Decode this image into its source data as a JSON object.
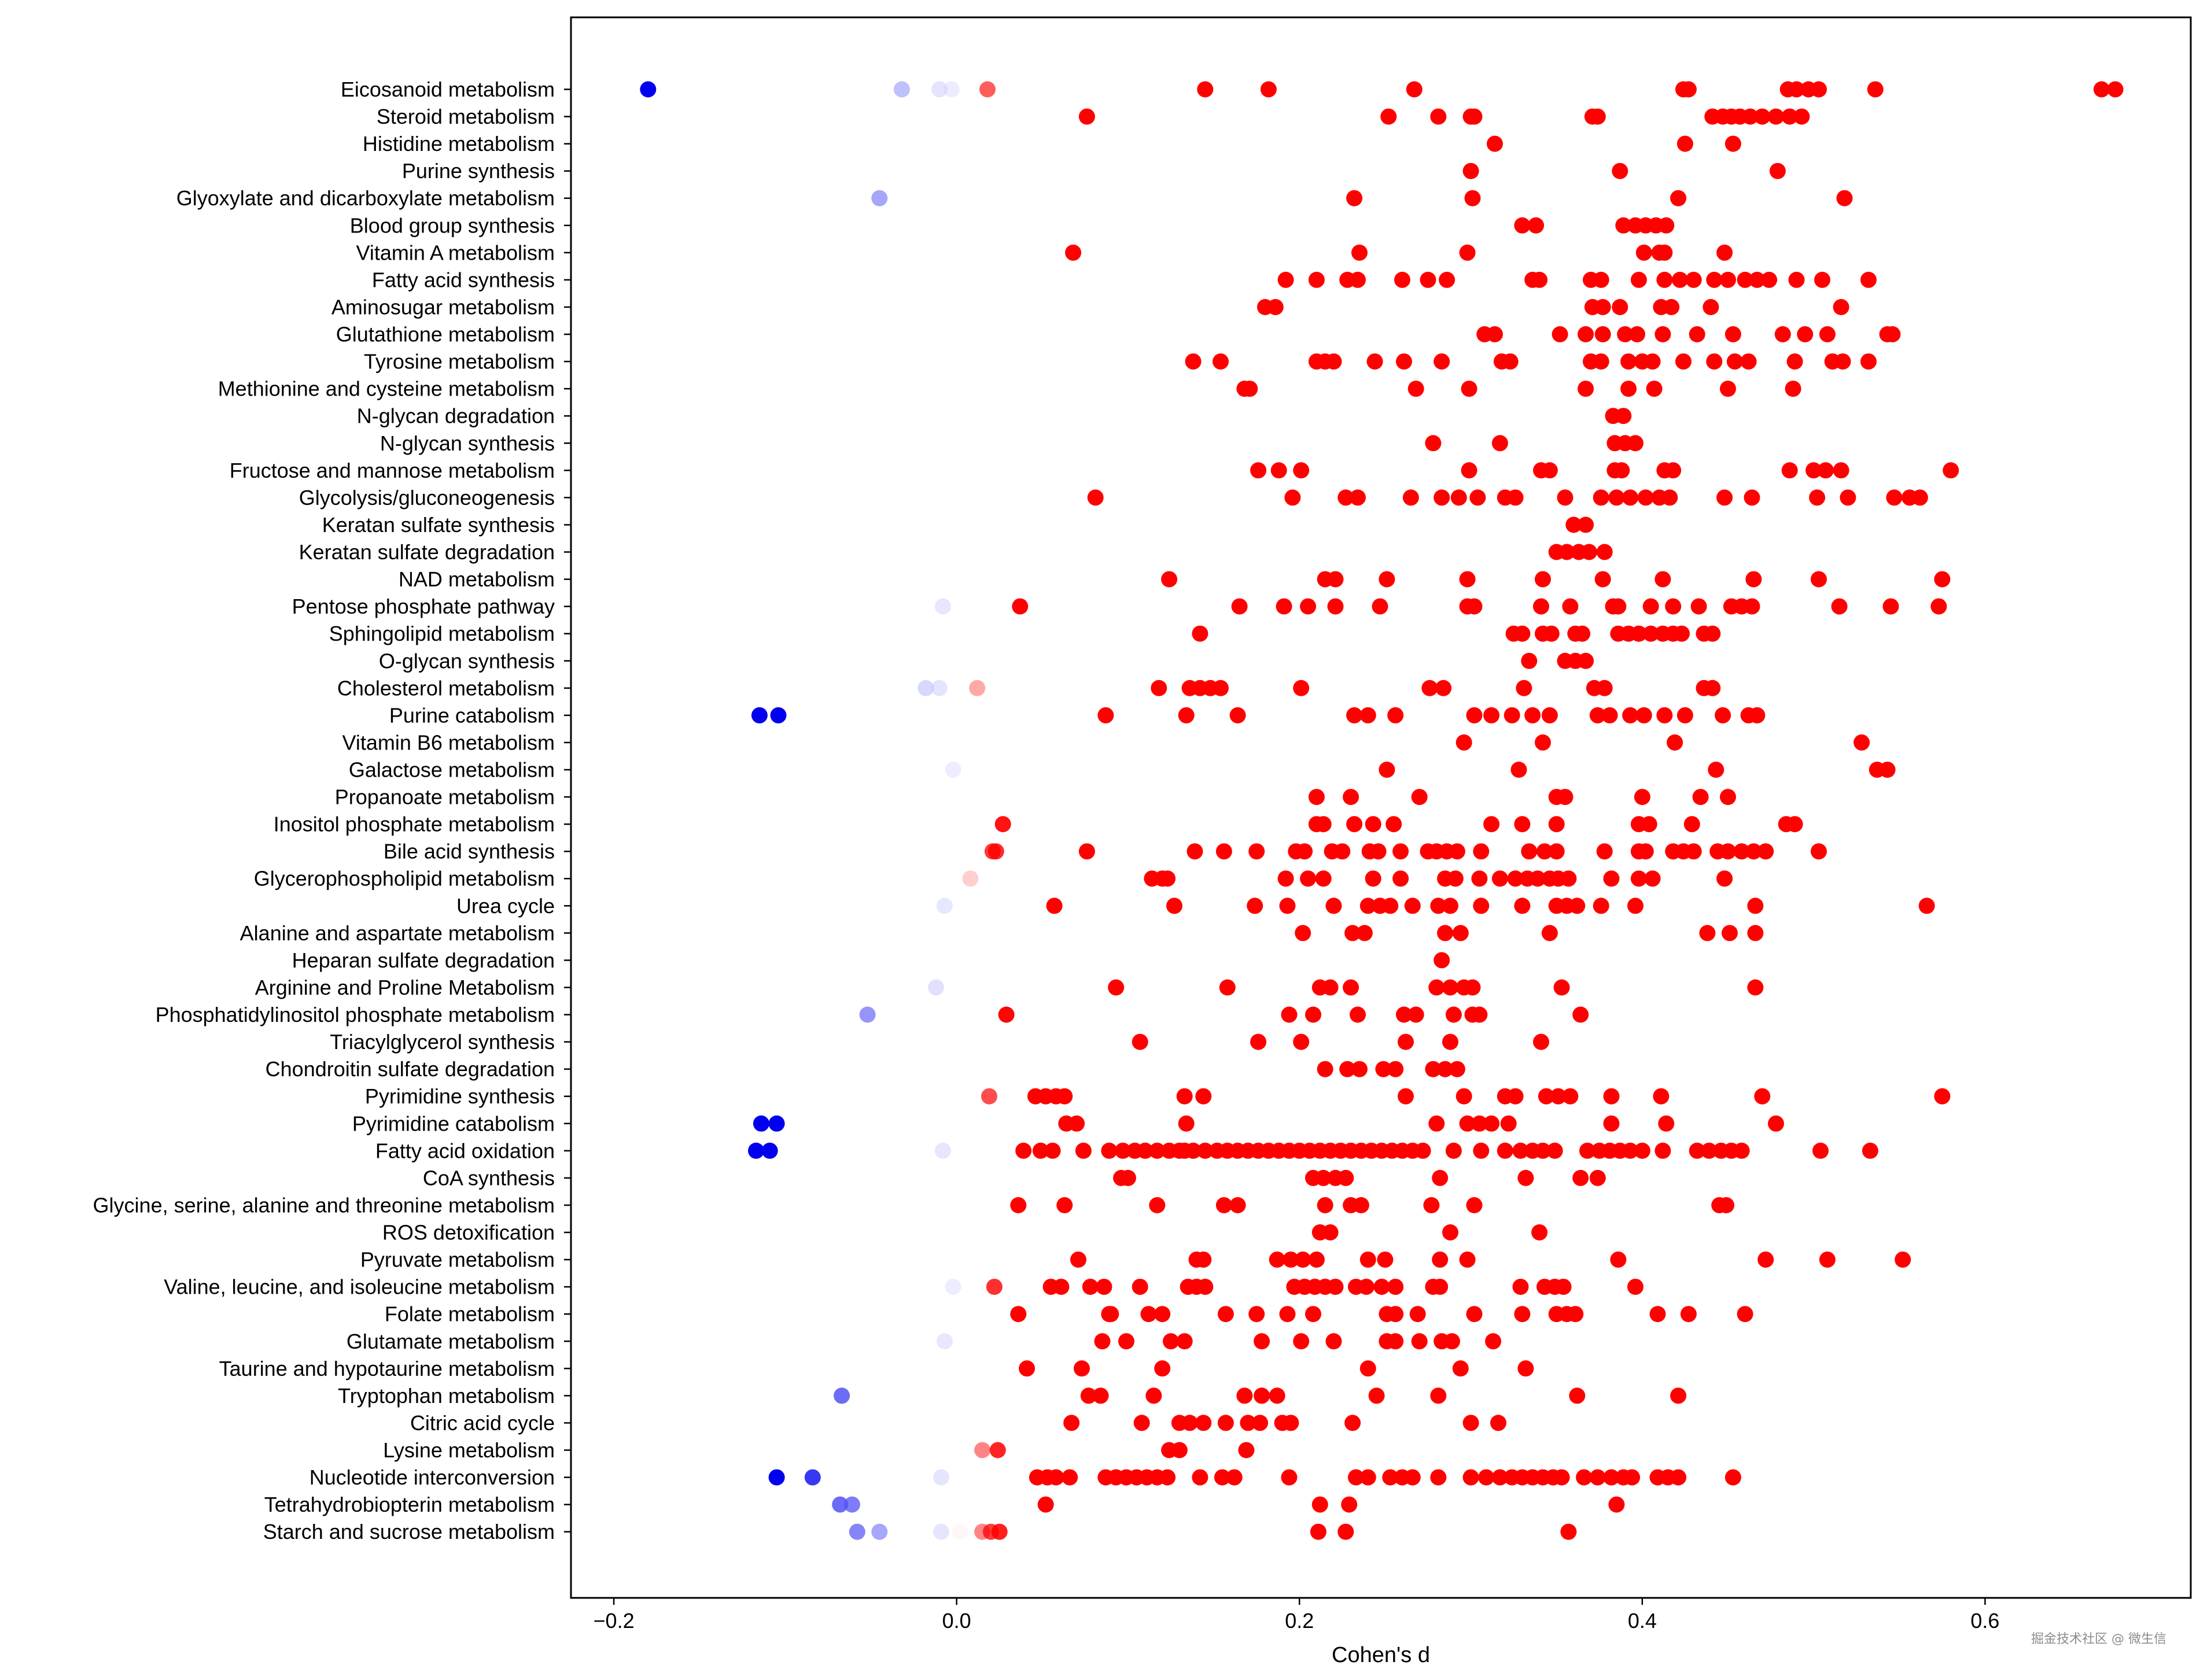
{
  "watermark": "掘金技术社区 @ 微生信",
  "chart_data": {
    "type": "scatter",
    "title": "",
    "xlabel": "Cohen's d",
    "ylabel": "",
    "xlim": [
      -0.225,
      0.72
    ],
    "xticks": [
      -0.2,
      0.0,
      0.2,
      0.4,
      0.6
    ],
    "xtick_labels": [
      "−0.2",
      "0.0",
      "0.2",
      "0.4",
      "0.6"
    ],
    "grid": false,
    "color_encoding": "diverging blue-white-red by Cohen's d (strong blue negative, faint near zero, strong red positive)",
    "colors": {
      "negative": "#0000ee",
      "positive": "#ff0000"
    },
    "categories": [
      "Eicosanoid metabolism",
      "Steroid metabolism",
      "Histidine metabolism",
      "Purine synthesis",
      "Glyoxylate and dicarboxylate metabolism",
      "Blood group synthesis",
      "Vitamin A metabolism",
      "Fatty acid synthesis",
      "Aminosugar metabolism",
      "Glutathione metabolism",
      "Tyrosine metabolism",
      "Methionine and cysteine metabolism",
      "N-glycan degradation",
      "N-glycan synthesis",
      "Fructose and mannose metabolism",
      "Glycolysis/gluconeogenesis",
      "Keratan sulfate synthesis",
      "Keratan sulfate degradation",
      "NAD metabolism",
      "Pentose phosphate pathway",
      "Sphingolipid metabolism",
      "O-glycan synthesis",
      "Cholesterol metabolism",
      "Purine catabolism",
      "Vitamin B6 metabolism",
      "Galactose metabolism",
      "Propanoate metabolism",
      "Inositol phosphate metabolism",
      "Bile acid synthesis",
      "Glycerophospholipid metabolism",
      "Urea cycle",
      "Alanine and aspartate metabolism",
      "Heparan sulfate degradation",
      "Arginine and Proline Metabolism",
      "Phosphatidylinositol phosphate metabolism",
      "Triacylglycerol synthesis",
      "Chondroitin sulfate degradation",
      "Pyrimidine synthesis",
      "Pyrimidine catabolism",
      "Fatty acid oxidation",
      "CoA synthesis",
      "Glycine, serine, alanine and threonine metabolism",
      "ROS detoxification",
      "Pyruvate metabolism",
      "Valine, leucine, and isoleucine metabolism",
      "Folate metabolism",
      "Glutamate metabolism",
      "Taurine and hypotaurine metabolism",
      "Tryptophan metabolism",
      "Citric acid cycle",
      "Lysine metabolism",
      "Nucleotide interconversion",
      "Tetrahydrobiopterin metabolism",
      "Starch and sucrose metabolism"
    ],
    "values": [
      [
        -0.18,
        -0.032,
        -0.01,
        -0.003,
        0.018,
        0.145,
        0.182,
        0.267,
        0.424,
        0.427,
        0.485,
        0.49,
        0.497,
        0.503,
        0.536,
        0.668,
        0.676
      ],
      [
        0.076,
        0.252,
        0.281,
        0.3,
        0.302,
        0.371,
        0.374,
        0.441,
        0.447,
        0.452,
        0.457,
        0.463,
        0.47,
        0.478,
        0.486,
        0.493
      ],
      [
        0.314,
        0.425,
        0.453
      ],
      [
        0.3,
        0.387,
        0.479
      ],
      [
        -0.045,
        0.232,
        0.301,
        0.421,
        0.518
      ],
      [
        0.33,
        0.338,
        0.389,
        0.396,
        0.402,
        0.408,
        0.414
      ],
      [
        0.068,
        0.235,
        0.298,
        0.401,
        0.41,
        0.413,
        0.448
      ],
      [
        0.192,
        0.21,
        0.228,
        0.234,
        0.26,
        0.275,
        0.286,
        0.336,
        0.34,
        0.37,
        0.376,
        0.398,
        0.413,
        0.422,
        0.43,
        0.442,
        0.45,
        0.46,
        0.467,
        0.474,
        0.49,
        0.505,
        0.532
      ],
      [
        0.18,
        0.186,
        0.371,
        0.377,
        0.387,
        0.411,
        0.417,
        0.44,
        0.516
      ],
      [
        0.308,
        0.314,
        0.352,
        0.367,
        0.377,
        0.39,
        0.397,
        0.412,
        0.432,
        0.453,
        0.482,
        0.495,
        0.508,
        0.543,
        0.546
      ],
      [
        0.138,
        0.154,
        0.21,
        0.215,
        0.22,
        0.244,
        0.261,
        0.283,
        0.318,
        0.323,
        0.37,
        0.376,
        0.392,
        0.4,
        0.406,
        0.424,
        0.442,
        0.454,
        0.462,
        0.489,
        0.511,
        0.517,
        0.532
      ],
      [
        0.168,
        0.171,
        0.268,
        0.299,
        0.367,
        0.392,
        0.407,
        0.45,
        0.488
      ],
      [
        0.383,
        0.389
      ],
      [
        0.278,
        0.317,
        0.384,
        0.39,
        0.396
      ],
      [
        0.176,
        0.188,
        0.201,
        0.299,
        0.341,
        0.346,
        0.384,
        0.388,
        0.413,
        0.418,
        0.486,
        0.5,
        0.507,
        0.516,
        0.58
      ],
      [
        0.081,
        0.196,
        0.227,
        0.234,
        0.265,
        0.283,
        0.293,
        0.304,
        0.32,
        0.326,
        0.355,
        0.376,
        0.385,
        0.393,
        0.402,
        0.41,
        0.416,
        0.448,
        0.464,
        0.502,
        0.52,
        0.547,
        0.556,
        0.562
      ],
      [
        0.36,
        0.367
      ],
      [
        0.35,
        0.356,
        0.363,
        0.369,
        0.378
      ],
      [
        0.124,
        0.215,
        0.221,
        0.251,
        0.298,
        0.342,
        0.377,
        0.412,
        0.465,
        0.503,
        0.575
      ],
      [
        -0.008,
        0.037,
        0.165,
        0.191,
        0.205,
        0.221,
        0.247,
        0.298,
        0.302,
        0.341,
        0.358,
        0.383,
        0.386,
        0.405,
        0.418,
        0.433,
        0.452,
        0.458,
        0.464,
        0.515,
        0.545,
        0.573
      ],
      [
        0.142,
        0.325,
        0.33,
        0.342,
        0.347,
        0.361,
        0.365,
        0.386,
        0.392,
        0.398,
        0.405,
        0.412,
        0.418,
        0.423,
        0.436,
        0.441
      ],
      [
        0.334,
        0.355,
        0.361,
        0.367
      ],
      [
        -0.018,
        -0.01,
        0.012,
        0.118,
        0.136,
        0.142,
        0.148,
        0.154,
        0.201,
        0.276,
        0.284,
        0.331,
        0.372,
        0.378,
        0.436,
        0.441
      ],
      [
        -0.115,
        -0.104,
        0.0,
        0.087,
        0.134,
        0.164,
        0.232,
        0.24,
        0.256,
        0.302,
        0.312,
        0.324,
        0.336,
        0.346,
        0.374,
        0.381,
        0.393,
        0.401,
        0.413,
        0.425,
        0.447,
        0.462,
        0.467
      ],
      [
        0.296,
        0.342,
        0.419,
        0.528
      ],
      [
        -0.002,
        0.251,
        0.328,
        0.443,
        0.537,
        0.543
      ],
      [
        0.21,
        0.23,
        0.27,
        0.35,
        0.355,
        0.4,
        0.434,
        0.45
      ],
      [
        0.027,
        0.21,
        0.214,
        0.232,
        0.243,
        0.255,
        0.312,
        0.33,
        0.35,
        0.398,
        0.404,
        0.429,
        0.484,
        0.489
      ],
      [
        0.021,
        0.023,
        0.076,
        0.139,
        0.156,
        0.175,
        0.198,
        0.203,
        0.219,
        0.225,
        0.241,
        0.246,
        0.259,
        0.275,
        0.28,
        0.286,
        0.292,
        0.306,
        0.334,
        0.343,
        0.35,
        0.378,
        0.398,
        0.402,
        0.418,
        0.424,
        0.43,
        0.444,
        0.45,
        0.458,
        0.465,
        0.472,
        0.503
      ],
      [
        0.008,
        0.114,
        0.12,
        0.123,
        0.192,
        0.205,
        0.214,
        0.243,
        0.259,
        0.285,
        0.291,
        0.305,
        0.317,
        0.326,
        0.333,
        0.339,
        0.346,
        0.351,
        0.357,
        0.382,
        0.398,
        0.406,
        0.448
      ],
      [
        -0.007,
        0.057,
        0.127,
        0.174,
        0.193,
        0.22,
        0.24,
        0.247,
        0.253,
        0.266,
        0.281,
        0.288,
        0.306,
        0.33,
        0.35,
        0.356,
        0.362,
        0.376,
        0.396,
        0.466,
        0.566
      ],
      [
        0.202,
        0.231,
        0.238,
        0.285,
        0.294,
        0.346,
        0.438,
        0.451,
        0.466
      ],
      [
        0.283
      ],
      [
        -0.012,
        0.093,
        0.158,
        0.212,
        0.218,
        0.23,
        0.28,
        0.288,
        0.296,
        0.301,
        0.353,
        0.466
      ],
      [
        -0.052,
        0.029,
        0.194,
        0.208,
        0.234,
        0.261,
        0.268,
        0.29,
        0.301,
        0.305,
        0.364
      ],
      [
        0.107,
        0.176,
        0.201,
        0.262,
        0.288,
        0.341
      ],
      [
        0.215,
        0.228,
        0.235,
        0.249,
        0.256,
        0.278,
        0.285,
        0.292
      ],
      [
        0.019,
        0.046,
        0.052,
        0.058,
        0.063,
        0.133,
        0.144,
        0.262,
        0.296,
        0.32,
        0.326,
        0.344,
        0.351,
        0.358,
        0.382,
        0.411,
        0.47,
        0.575
      ],
      [
        -0.114,
        -0.105,
        0.064,
        0.07,
        0.134,
        0.28,
        0.298,
        0.305,
        0.312,
        0.322,
        0.382,
        0.414,
        0.478
      ],
      [
        -0.117,
        -0.109,
        -0.008,
        0.039,
        0.049,
        0.056,
        0.074,
        0.089,
        0.097,
        0.104,
        0.11,
        0.117,
        0.124,
        0.13,
        0.133,
        0.138,
        0.145,
        0.152,
        0.158,
        0.164,
        0.17,
        0.176,
        0.182,
        0.188,
        0.194,
        0.2,
        0.206,
        0.212,
        0.218,
        0.224,
        0.23,
        0.236,
        0.242,
        0.248,
        0.254,
        0.26,
        0.266,
        0.272,
        0.29,
        0.306,
        0.32,
        0.329,
        0.336,
        0.342,
        0.349,
        0.368,
        0.375,
        0.381,
        0.387,
        0.393,
        0.4,
        0.412,
        0.432,
        0.439,
        0.446,
        0.452,
        0.458,
        0.504,
        0.533
      ],
      [
        0.096,
        0.1,
        0.208,
        0.214,
        0.221,
        0.227,
        0.282,
        0.332,
        0.364,
        0.374
      ],
      [
        0.036,
        0.063,
        0.117,
        0.156,
        0.164,
        0.215,
        0.23,
        0.236,
        0.277,
        0.302,
        0.445,
        0.449
      ],
      [
        0.212,
        0.218,
        0.288,
        0.34
      ],
      [
        0.071,
        0.14,
        0.144,
        0.187,
        0.195,
        0.202,
        0.21,
        0.24,
        0.25,
        0.282,
        0.298,
        0.386,
        0.472,
        0.508,
        0.552
      ],
      [
        -0.002,
        0.022,
        0.055,
        0.061,
        0.078,
        0.086,
        0.107,
        0.135,
        0.14,
        0.145,
        0.197,
        0.203,
        0.209,
        0.215,
        0.221,
        0.233,
        0.239,
        0.248,
        0.256,
        0.278,
        0.282,
        0.329,
        0.343,
        0.349,
        0.354,
        0.396
      ],
      [
        0.036,
        0.089,
        0.09,
        0.112,
        0.12,
        0.157,
        0.175,
        0.193,
        0.208,
        0.251,
        0.256,
        0.269,
        0.302,
        0.33,
        0.35,
        0.356,
        0.361,
        0.409,
        0.427,
        0.46
      ],
      [
        -0.007,
        0.085,
        0.099,
        0.125,
        0.133,
        0.178,
        0.201,
        0.22,
        0.251,
        0.256,
        0.27,
        0.283,
        0.289,
        0.313
      ],
      [
        0.041,
        0.073,
        0.12,
        0.24,
        0.294,
        0.332
      ],
      [
        -0.067,
        0.077,
        0.084,
        0.115,
        0.168,
        0.178,
        0.187,
        0.245,
        0.281,
        0.362,
        0.421
      ],
      [
        0.067,
        0.108,
        0.13,
        0.136,
        0.144,
        0.157,
        0.17,
        0.177,
        0.19,
        0.195,
        0.231,
        0.3,
        0.316
      ],
      [
        0.015,
        0.024,
        0.124,
        0.13,
        0.169
      ],
      [
        -0.105,
        -0.084,
        -0.009,
        0.047,
        0.053,
        0.058,
        0.066,
        0.087,
        0.093,
        0.099,
        0.105,
        0.111,
        0.117,
        0.123,
        0.142,
        0.155,
        0.162,
        0.194,
        0.233,
        0.24,
        0.253,
        0.26,
        0.266,
        0.281,
        0.3,
        0.309,
        0.317,
        0.324,
        0.33,
        0.336,
        0.342,
        0.348,
        0.353,
        0.366,
        0.374,
        0.382,
        0.389,
        0.394,
        0.409,
        0.415,
        0.421,
        0.453
      ],
      [
        -0.068,
        -0.061,
        0.052,
        0.212,
        0.229,
        0.385
      ],
      [
        -0.058,
        -0.045,
        -0.009,
        0.002,
        0.015,
        0.02,
        0.025,
        0.211,
        0.227,
        0.357
      ]
    ]
  }
}
